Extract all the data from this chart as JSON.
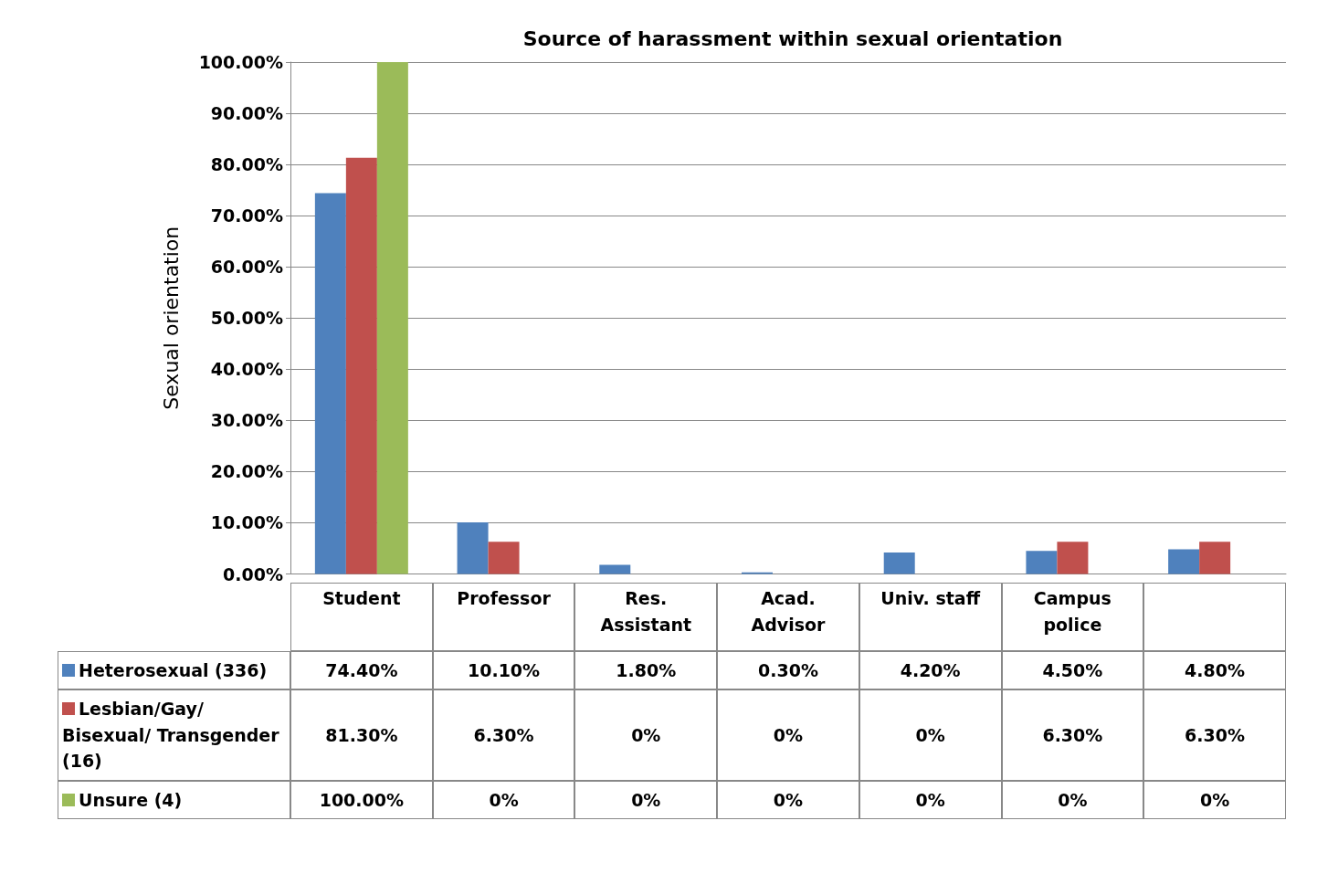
{
  "chart_data": {
    "type": "bar",
    "title": "Source of harassment within sexual orientation",
    "ylabel": "Sexual orientation",
    "categories": [
      "Student",
      "Professor",
      "Res. Assistant",
      "Acad. Advisor",
      "Univ. staff",
      "Campus police",
      null
    ],
    "series": [
      {
        "name": "Heterosexual (336)",
        "color": "#4f81bd",
        "values": [
          74.4,
          10.1,
          1.8,
          0.3,
          4.2,
          4.5,
          4.8
        ],
        "value_labels": [
          "74.40%",
          "10.10%",
          "1.80%",
          "0.30%",
          "4.20%",
          "4.50%",
          "4.80%"
        ]
      },
      {
        "name": "Lesbian/Gay/ Bisexual/ Transgender (16)",
        "color": "#c0504d",
        "values": [
          81.3,
          6.3,
          0,
          0,
          0,
          6.3,
          6.3
        ],
        "value_labels": [
          "81.30%",
          "6.30%",
          "0%",
          "0%",
          "0%",
          "6.30%",
          "6.30%"
        ]
      },
      {
        "name": "Unsure (4)",
        "color": "#9bbb59",
        "values": [
          100,
          0,
          0,
          0,
          0,
          0,
          0
        ],
        "value_labels": [
          "100.00%",
          "0%",
          "0%",
          "0%",
          "0%",
          "0%",
          "0%"
        ]
      }
    ],
    "ylim": [
      0,
      100
    ],
    "yticks": [
      {
        "value": 0,
        "label": "0.00%"
      },
      {
        "value": 10,
        "label": "10.00%"
      },
      {
        "value": 20,
        "label": "20.00%"
      },
      {
        "value": 30,
        "label": "30.00%"
      },
      {
        "value": 40,
        "label": "40.00%"
      },
      {
        "value": 50,
        "label": "50.00%"
      },
      {
        "value": 60,
        "label": "60.00%"
      },
      {
        "value": 70,
        "label": "70.00%"
      },
      {
        "value": 80,
        "label": "80.00%"
      },
      {
        "value": 90,
        "label": "90.00%"
      },
      {
        "value": 100,
        "label": "100.00%"
      }
    ],
    "grid": "y",
    "legend": "bottom"
  }
}
